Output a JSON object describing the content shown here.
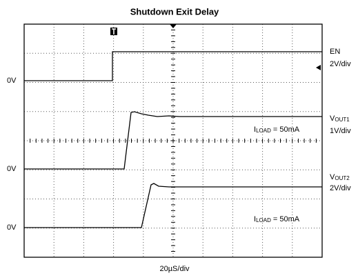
{
  "title": "Shutdown Exit Delay",
  "timebase": "20µS/div",
  "channels": [
    {
      "name": {
        "main": "EN"
      },
      "scale": "2V/div",
      "ground": "0V"
    },
    {
      "name": {
        "main": "V",
        "sub": "OUT1"
      },
      "scale": "1V/div",
      "ground": "0V",
      "note": {
        "main": "I",
        "sub": "LOAD",
        "rest": " = 50mA"
      }
    },
    {
      "name": {
        "main": "V",
        "sub": "OUT2"
      },
      "scale": "2V/div",
      "ground": "0V",
      "note": {
        "main": "I",
        "sub": "LOAD",
        "rest": " = 50mA"
      }
    }
  ]
}
